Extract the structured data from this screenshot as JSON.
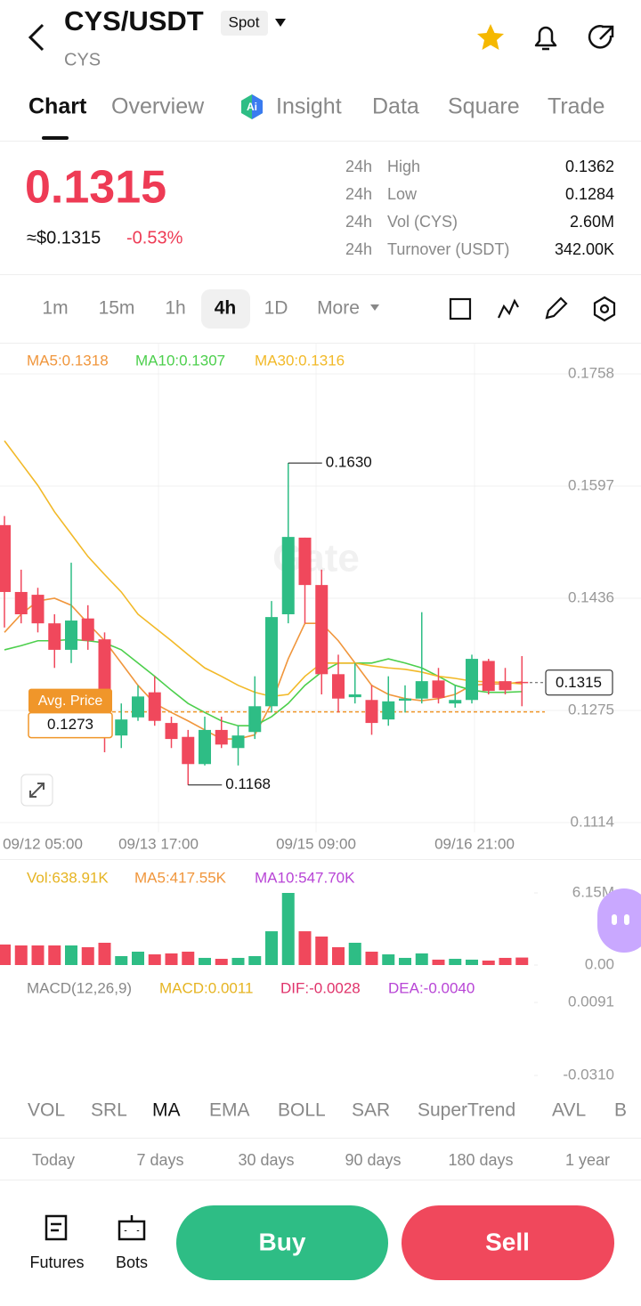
{
  "header": {
    "pair": "CYS/USDT",
    "market": "Spot",
    "base": "CYS"
  },
  "tabs": [
    "Chart",
    "Overview",
    "Insight",
    "Data",
    "Square",
    "Trade"
  ],
  "ticker": {
    "price": "0.1315",
    "fiat": "≈$0.1315",
    "change": "-0.53%"
  },
  "stats": [
    {
      "period": "24h",
      "label": "High",
      "value": "0.1362"
    },
    {
      "period": "24h",
      "label": "Low",
      "value": "0.1284"
    },
    {
      "period": "24h",
      "label": "Vol (CYS)",
      "value": "2.60M"
    },
    {
      "period": "24h",
      "label": "Turnover (USDT)",
      "value": "342.00K"
    }
  ],
  "intervals": [
    "1m",
    "15m",
    "1h",
    "4h",
    "1D",
    "More"
  ],
  "chart_data": {
    "type": "candlestick",
    "watermark": "Gate",
    "up_color": "#2ebd85",
    "down_color": "#f0485c",
    "ylim": [
      0.1114,
      0.1758
    ],
    "yticks": [
      0.1758,
      0.1597,
      0.1436,
      0.1275,
      0.1114
    ],
    "x_labels": [
      "09/12 05:00",
      "09/13 17:00",
      "09/15 09:00",
      "09/16 21:00"
    ],
    "candles": [
      {
        "open": 0.1541,
        "high": 0.1554,
        "low": 0.1394,
        "close": 0.1445
      },
      {
        "open": 0.1445,
        "high": 0.1477,
        "low": 0.14,
        "close": 0.1413
      },
      {
        "open": 0.1441,
        "high": 0.1451,
        "low": 0.1387,
        "close": 0.14
      },
      {
        "open": 0.14,
        "high": 0.1413,
        "low": 0.1336,
        "close": 0.1362
      },
      {
        "open": 0.1362,
        "high": 0.1487,
        "low": 0.1343,
        "close": 0.1404
      },
      {
        "open": 0.1407,
        "high": 0.1426,
        "low": 0.1362,
        "close": 0.1375
      },
      {
        "open": 0.1377,
        "high": 0.1387,
        "low": 0.1215,
        "close": 0.1301
      },
      {
        "open": 0.1239,
        "high": 0.1285,
        "low": 0.1221,
        "close": 0.1262
      },
      {
        "open": 0.1265,
        "high": 0.1311,
        "low": 0.126,
        "close": 0.1295
      },
      {
        "open": 0.1301,
        "high": 0.1324,
        "low": 0.1253,
        "close": 0.126
      },
      {
        "open": 0.1257,
        "high": 0.1266,
        "low": 0.1221,
        "close": 0.1234
      },
      {
        "open": 0.1237,
        "high": 0.1247,
        "low": 0.1168,
        "close": 0.1198
      },
      {
        "open": 0.1198,
        "high": 0.1266,
        "low": 0.1196,
        "close": 0.1247
      },
      {
        "open": 0.1247,
        "high": 0.1266,
        "low": 0.1221,
        "close": 0.1226
      },
      {
        "open": 0.1221,
        "high": 0.1253,
        "low": 0.1196,
        "close": 0.1239
      },
      {
        "open": 0.1244,
        "high": 0.1324,
        "low": 0.1234,
        "close": 0.1281
      },
      {
        "open": 0.1281,
        "high": 0.1432,
        "low": 0.1272,
        "close": 0.1409
      },
      {
        "open": 0.1413,
        "high": 0.163,
        "low": 0.14,
        "close": 0.1524
      },
      {
        "open": 0.1523,
        "high": 0.1523,
        "low": 0.14,
        "close": 0.1455
      },
      {
        "open": 0.1455,
        "high": 0.1477,
        "low": 0.1298,
        "close": 0.1327
      },
      {
        "open": 0.1327,
        "high": 0.1355,
        "low": 0.1272,
        "close": 0.1292
      },
      {
        "open": 0.1294,
        "high": 0.1343,
        "low": 0.1285,
        "close": 0.1298
      },
      {
        "open": 0.129,
        "high": 0.1311,
        "low": 0.124,
        "close": 0.1257
      },
      {
        "open": 0.1262,
        "high": 0.1324,
        "low": 0.1253,
        "close": 0.1288
      },
      {
        "open": 0.1289,
        "high": 0.1311,
        "low": 0.1272,
        "close": 0.1292
      },
      {
        "open": 0.1292,
        "high": 0.1416,
        "low": 0.1285,
        "close": 0.1317
      },
      {
        "open": 0.1318,
        "high": 0.1336,
        "low": 0.1285,
        "close": 0.1293
      },
      {
        "open": 0.1285,
        "high": 0.1311,
        "low": 0.1279,
        "close": 0.129
      },
      {
        "open": 0.129,
        "high": 0.1355,
        "low": 0.1285,
        "close": 0.1349
      },
      {
        "open": 0.1346,
        "high": 0.1349,
        "low": 0.1298,
        "close": 0.1303
      },
      {
        "open": 0.1317,
        "high": 0.1336,
        "low": 0.1298,
        "close": 0.1304
      },
      {
        "open": 0.1316,
        "high": 0.1353,
        "low": 0.1281,
        "close": 0.1315
      }
    ],
    "ma_lines": [
      {
        "label": "MA5:0.1318",
        "color": "#f0963c",
        "values": [
          0.1387,
          0.1413,
          0.1432,
          0.1436,
          0.1426,
          0.14,
          0.1375,
          0.1343,
          0.1311,
          0.1285,
          0.1272,
          0.126,
          0.1247,
          0.1234,
          0.1234,
          0.124,
          0.1285,
          0.1349,
          0.14,
          0.14,
          0.1375,
          0.1343,
          0.1311,
          0.1298,
          0.1292,
          0.1289,
          0.1292,
          0.1298,
          0.1311,
          0.1313,
          0.1313,
          0.1316
        ]
      },
      {
        "label": "MA10:0.1307",
        "color": "#4ccf4c",
        "values": [
          0.1362,
          0.1368,
          0.1375,
          0.1375,
          0.1377,
          0.1375,
          0.1372,
          0.1362,
          0.1343,
          0.1324,
          0.1304,
          0.1285,
          0.1272,
          0.126,
          0.1253,
          0.1253,
          0.1266,
          0.1285,
          0.1311,
          0.133,
          0.1343,
          0.1343,
          0.1343,
          0.1349,
          0.1343,
          0.1336,
          0.1324,
          0.1311,
          0.1304,
          0.1301,
          0.1301,
          0.1302
        ]
      },
      {
        "label": "MA30:0.1316",
        "color": "#f2b928",
        "values": [
          0.1662,
          0.163,
          0.1598,
          0.156,
          0.1528,
          0.1496,
          0.147,
          0.1445,
          0.1413,
          0.1394,
          0.1375,
          0.1355,
          0.1336,
          0.1324,
          0.1311,
          0.1301,
          0.1295,
          0.1298,
          0.1324,
          0.1343,
          0.1343,
          0.1343,
          0.1339,
          0.1336,
          0.1334,
          0.133,
          0.1324,
          0.1321,
          0.1317,
          0.1316,
          0.1315,
          0.1313
        ]
      }
    ],
    "max_label": "0.1630",
    "min_label": "0.1168",
    "avg_price": {
      "label": "Avg. Price",
      "value": 0.1273,
      "color": "#f0962a"
    },
    "last_price": 0.1315,
    "volume": {
      "labels": [
        {
          "label": "Vol:638.91K",
          "color": "#e6b422"
        },
        {
          "label": "MA5:417.55K",
          "color": "#f0963c"
        },
        {
          "label": "MA10:547.70K",
          "color": "#b845d6"
        }
      ],
      "ylim": [
        0,
        6150000
      ],
      "yticks": [
        {
          "value": 6150000,
          "label": "6.15M"
        },
        {
          "value": 0,
          "label": "0.00"
        }
      ],
      "values": [
        1750000,
        1670000,
        1670000,
        1670000,
        1670000,
        1520000,
        1900000,
        760000,
        1140000,
        910000,
        990000,
        1140000,
        610000,
        530000,
        610000,
        760000,
        2880000,
        6150000,
        2880000,
        2430000,
        1520000,
        1900000,
        1140000,
        910000,
        610000,
        990000,
        460000,
        530000,
        460000,
        380000,
        610000,
        638910
      ]
    },
    "macd": {
      "labels": [
        {
          "label": "MACD(12,26,9)",
          "color": "#888888"
        },
        {
          "label": "MACD:0.0011",
          "color": "#e6b422"
        },
        {
          "label": "DIF:-0.0028",
          "color": "#e0336b"
        },
        {
          "label": "DEA:-0.0040",
          "color": "#b845d6"
        }
      ],
      "ylim": [
        -0.031,
        0.0091
      ],
      "yticks": [
        0.0091,
        {
          "value": -0.031,
          "label": "-0.0310"
        }
      ]
    }
  },
  "indicators": [
    "VOL",
    "SRL",
    "MA",
    "EMA",
    "BOLL",
    "SAR",
    "SuperTrend",
    "AVL",
    "B"
  ],
  "ranges": [
    "Today",
    "7 days",
    "30 days",
    "90 days",
    "180 days",
    "1 year"
  ],
  "actions": {
    "futures": "Futures",
    "bots": "Bots",
    "buy": "Buy",
    "sell": "Sell"
  }
}
